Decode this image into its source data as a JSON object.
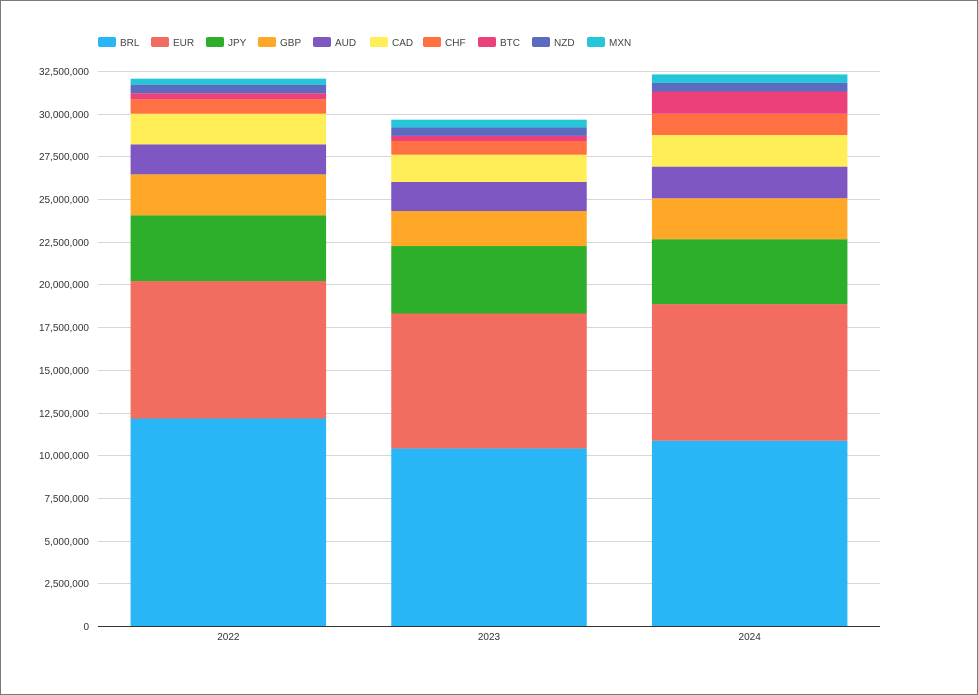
{
  "chart_data": {
    "type": "bar",
    "stacked": true,
    "categories": [
      "2022",
      "2023",
      "2024"
    ],
    "ylim": [
      0,
      32500000
    ],
    "yticks": [
      "0",
      "2,500,000",
      "5,000,000",
      "7,500,000",
      "10,000,000",
      "12,500,000",
      "15,000,000",
      "17,500,000",
      "20,000,000",
      "22,500,000",
      "25,000,000",
      "27,500,000",
      "30,000,000",
      "32,500,000"
    ],
    "ytick_values": [
      0,
      2500000,
      5000000,
      7500000,
      10000000,
      12500000,
      15000000,
      17500000,
      20000000,
      22500000,
      25000000,
      27500000,
      30000000,
      32500000
    ],
    "grid": true,
    "legend_position": "top-left",
    "series": [
      {
        "name": "BRL",
        "color": "#29b6f6",
        "values": [
          12150000,
          10400000,
          10850000
        ]
      },
      {
        "name": "EUR",
        "color": "#f26c60",
        "values": [
          8050000,
          7900000,
          8000000
        ]
      },
      {
        "name": "JPY",
        "color": "#2daf2c",
        "values": [
          3850000,
          3950000,
          3800000
        ]
      },
      {
        "name": "GBP",
        "color": "#ffa726",
        "values": [
          2400000,
          2050000,
          2400000
        ]
      },
      {
        "name": "AUD",
        "color": "#7e57c2",
        "values": [
          1750000,
          1700000,
          1850000
        ]
      },
      {
        "name": "CAD",
        "color": "#ffee58",
        "values": [
          1800000,
          1600000,
          1850000
        ]
      },
      {
        "name": "CHF",
        "color": "#ff7043",
        "values": [
          850000,
          800000,
          1250000
        ]
      },
      {
        "name": "BTC",
        "color": "#ec407a",
        "values": [
          350000,
          300000,
          1300000
        ]
      },
      {
        "name": "NZD",
        "color": "#5c6bc0",
        "values": [
          500000,
          500000,
          500000
        ]
      },
      {
        "name": "MXN",
        "color": "#26c6da",
        "values": [
          350000,
          450000,
          500000
        ]
      }
    ]
  }
}
